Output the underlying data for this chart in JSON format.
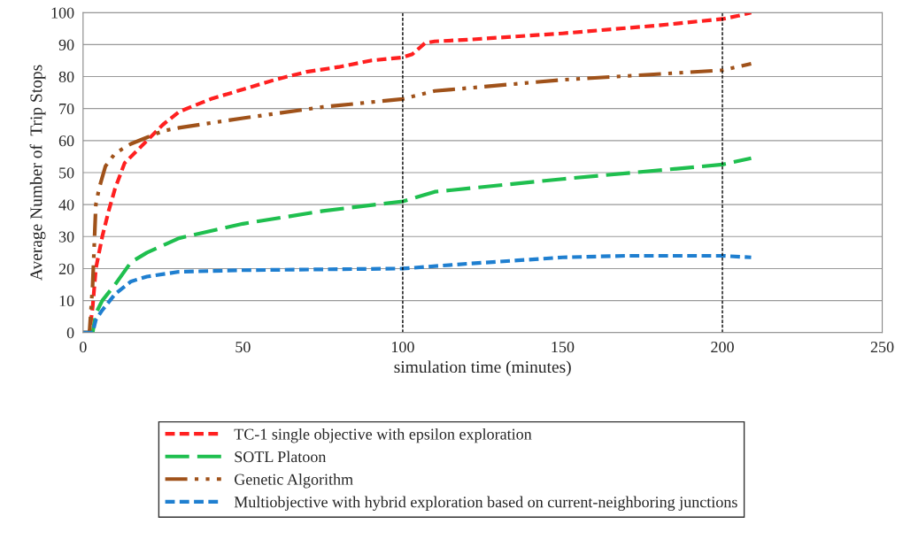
{
  "chart_data": {
    "type": "line",
    "xlabel": "simulation time (minutes)",
    "ylabel": "Average Number of  Trip Stops",
    "xlim": [
      0,
      250
    ],
    "xticks": [
      0,
      50,
      100,
      150,
      200,
      250
    ],
    "ylim": [
      0,
      100
    ],
    "yticks": [
      0,
      10,
      20,
      30,
      40,
      50,
      60,
      70,
      80,
      90,
      100
    ],
    "grid": "y",
    "legend": "bottom",
    "marker": "none",
    "ref_lines": [
      {
        "axis": "x",
        "value": 100,
        "color": "#000000",
        "line_style": "dashed"
      },
      {
        "axis": "x",
        "value": 200,
        "color": "#000000",
        "line_style": "dashed"
      }
    ],
    "series": [
      {
        "name": "TC-1 single objective with epsilon exploration",
        "color": "#ff2020",
        "line_style": "dashed",
        "x": [
          0,
          2,
          3,
          4,
          6,
          8,
          10,
          13,
          17,
          20,
          25,
          30,
          40,
          50,
          60,
          70,
          80,
          90,
          100,
          103,
          107,
          110,
          120,
          150,
          180,
          200,
          205,
          209
        ],
        "values": [
          0,
          0,
          8,
          20,
          30,
          38,
          45,
          53,
          57,
          60,
          65,
          69,
          73,
          76,
          79,
          81.5,
          83,
          85,
          86,
          87,
          90.5,
          91,
          91.5,
          93.5,
          96,
          98,
          99,
          100
        ]
      },
      {
        "name": "SOTL Platoon",
        "color": "#1fbf4f",
        "line_style": "longdash",
        "x": [
          0,
          3,
          4,
          6,
          10,
          15,
          20,
          30,
          50,
          75,
          100,
          110,
          150,
          200,
          209
        ],
        "values": [
          0,
          0,
          6,
          10,
          15,
          22,
          25,
          29.5,
          34,
          38,
          41,
          44,
          48,
          52.5,
          54.5
        ]
      },
      {
        "name": "Genetic Algorithm",
        "color": "#a0521a",
        "line_style": "dashdotdot",
        "x": [
          0,
          2,
          3,
          4,
          5,
          7,
          10,
          15,
          20,
          25,
          30,
          50,
          75,
          100,
          110,
          150,
          200,
          209
        ],
        "values": [
          0,
          0,
          15,
          40,
          45,
          52,
          56,
          59,
          61,
          63,
          64,
          67,
          70.5,
          73,
          75.5,
          79,
          82,
          84
        ]
      },
      {
        "name": "Multiobjective with hybrid exploration based on current-neighboring junctions",
        "color": "#1f7fd0",
        "line_style": "dashed",
        "x": [
          0,
          3,
          4,
          6,
          10,
          15,
          20,
          30,
          50,
          100,
          120,
          150,
          170,
          200,
          209
        ],
        "values": [
          0,
          0,
          4,
          7,
          12,
          16,
          17.5,
          19,
          19.5,
          20,
          21.5,
          23.5,
          24,
          24,
          23.5
        ]
      }
    ]
  }
}
